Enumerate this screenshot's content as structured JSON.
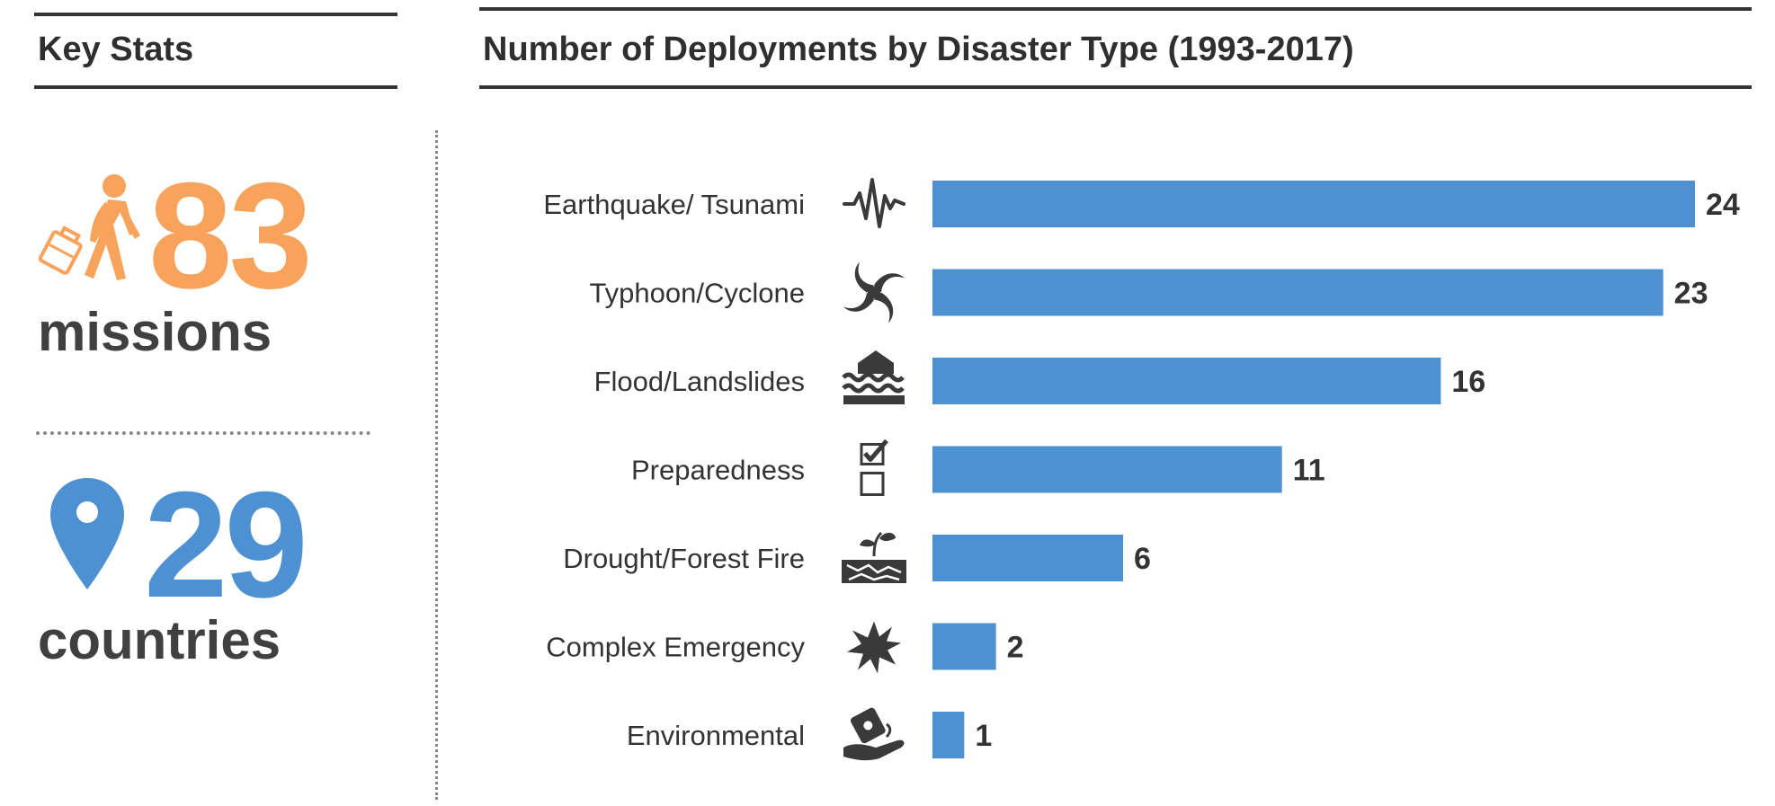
{
  "left_panel": {
    "title": "Key Stats",
    "stats": [
      {
        "value": "83",
        "label": "missions",
        "color": "#f7a35c",
        "icon": "walking-person-with-bag-icon"
      },
      {
        "value": "29",
        "label": "countries",
        "color": "#4e91d2",
        "icon": "map-pin-icon"
      }
    ]
  },
  "chart_data": {
    "type": "bar",
    "orientation": "horizontal",
    "title": "Number of Deployments by Disaster Type (1993-2017)",
    "categories": [
      "Earthquake/ Tsunami",
      "Typhoon/Cyclone",
      "Flood/Landslides",
      "Preparedness",
      "Drought/Forest Fire",
      "Complex Emergency",
      "Environmental"
    ],
    "values": [
      24,
      23,
      16,
      11,
      6,
      2,
      1
    ],
    "icons": [
      "seismograph-icon",
      "cyclone-icon",
      "flooded-house-icon",
      "checklist-icon",
      "drought-plant-icon",
      "explosion-icon",
      "spilled-barrel-hand-icon"
    ],
    "bar_color": "#4e91d2",
    "xlim": [
      0,
      24
    ],
    "grid": false,
    "legend": false,
    "data_labels": true
  }
}
